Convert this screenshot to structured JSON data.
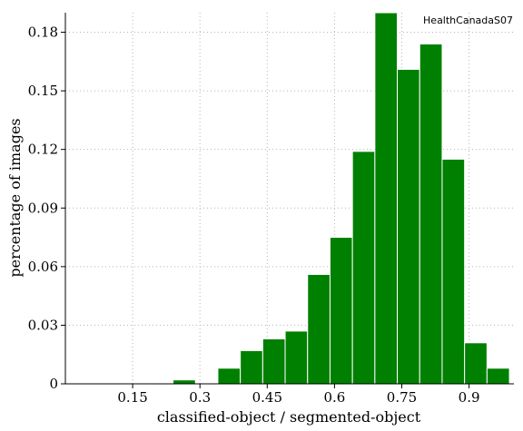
{
  "chart_data": {
    "type": "bar",
    "title": "",
    "xlabel": "classified-object / segmented-object",
    "ylabel": "percentage of images",
    "legend": {
      "text": "HealthCanadaS07",
      "placement": "top-right"
    },
    "bar_color": "#008000",
    "xlim": [
      0.0,
      1.0
    ],
    "ylim": [
      0,
      0.19
    ],
    "x_ticks": [
      {
        "value": 0.15,
        "label": "0.15"
      },
      {
        "value": 0.3,
        "label": "0.3"
      },
      {
        "value": 0.45,
        "label": "0.45"
      },
      {
        "value": 0.6,
        "label": "0.6"
      },
      {
        "value": 0.75,
        "label": "0.75"
      },
      {
        "value": 0.9,
        "label": "0.9"
      }
    ],
    "y_ticks": [
      {
        "value": 0,
        "label": "0"
      },
      {
        "value": 0.03,
        "label": "0.03"
      },
      {
        "value": 0.06,
        "label": "0.06"
      },
      {
        "value": 0.09,
        "label": "0.09"
      },
      {
        "value": 0.12,
        "label": "0.12"
      },
      {
        "value": 0.15,
        "label": "0.15"
      },
      {
        "value": 0.18,
        "label": "0.18"
      }
    ],
    "grid": true,
    "bins": [
      {
        "x0": 0.24,
        "x1": 0.29,
        "value": 0.002
      },
      {
        "x0": 0.34,
        "x1": 0.39,
        "value": 0.008
      },
      {
        "x0": 0.39,
        "x1": 0.44,
        "value": 0.017
      },
      {
        "x0": 0.44,
        "x1": 0.49,
        "value": 0.023
      },
      {
        "x0": 0.49,
        "x1": 0.54,
        "value": 0.027
      },
      {
        "x0": 0.54,
        "x1": 0.59,
        "value": 0.056
      },
      {
        "x0": 0.59,
        "x1": 0.64,
        "value": 0.075
      },
      {
        "x0": 0.64,
        "x1": 0.69,
        "value": 0.119
      },
      {
        "x0": 0.69,
        "x1": 0.74,
        "value": 0.19
      },
      {
        "x0": 0.74,
        "x1": 0.79,
        "value": 0.161
      },
      {
        "x0": 0.79,
        "x1": 0.84,
        "value": 0.174
      },
      {
        "x0": 0.84,
        "x1": 0.89,
        "value": 0.115
      },
      {
        "x0": 0.89,
        "x1": 0.94,
        "value": 0.021
      },
      {
        "x0": 0.94,
        "x1": 0.99,
        "value": 0.008
      }
    ]
  }
}
